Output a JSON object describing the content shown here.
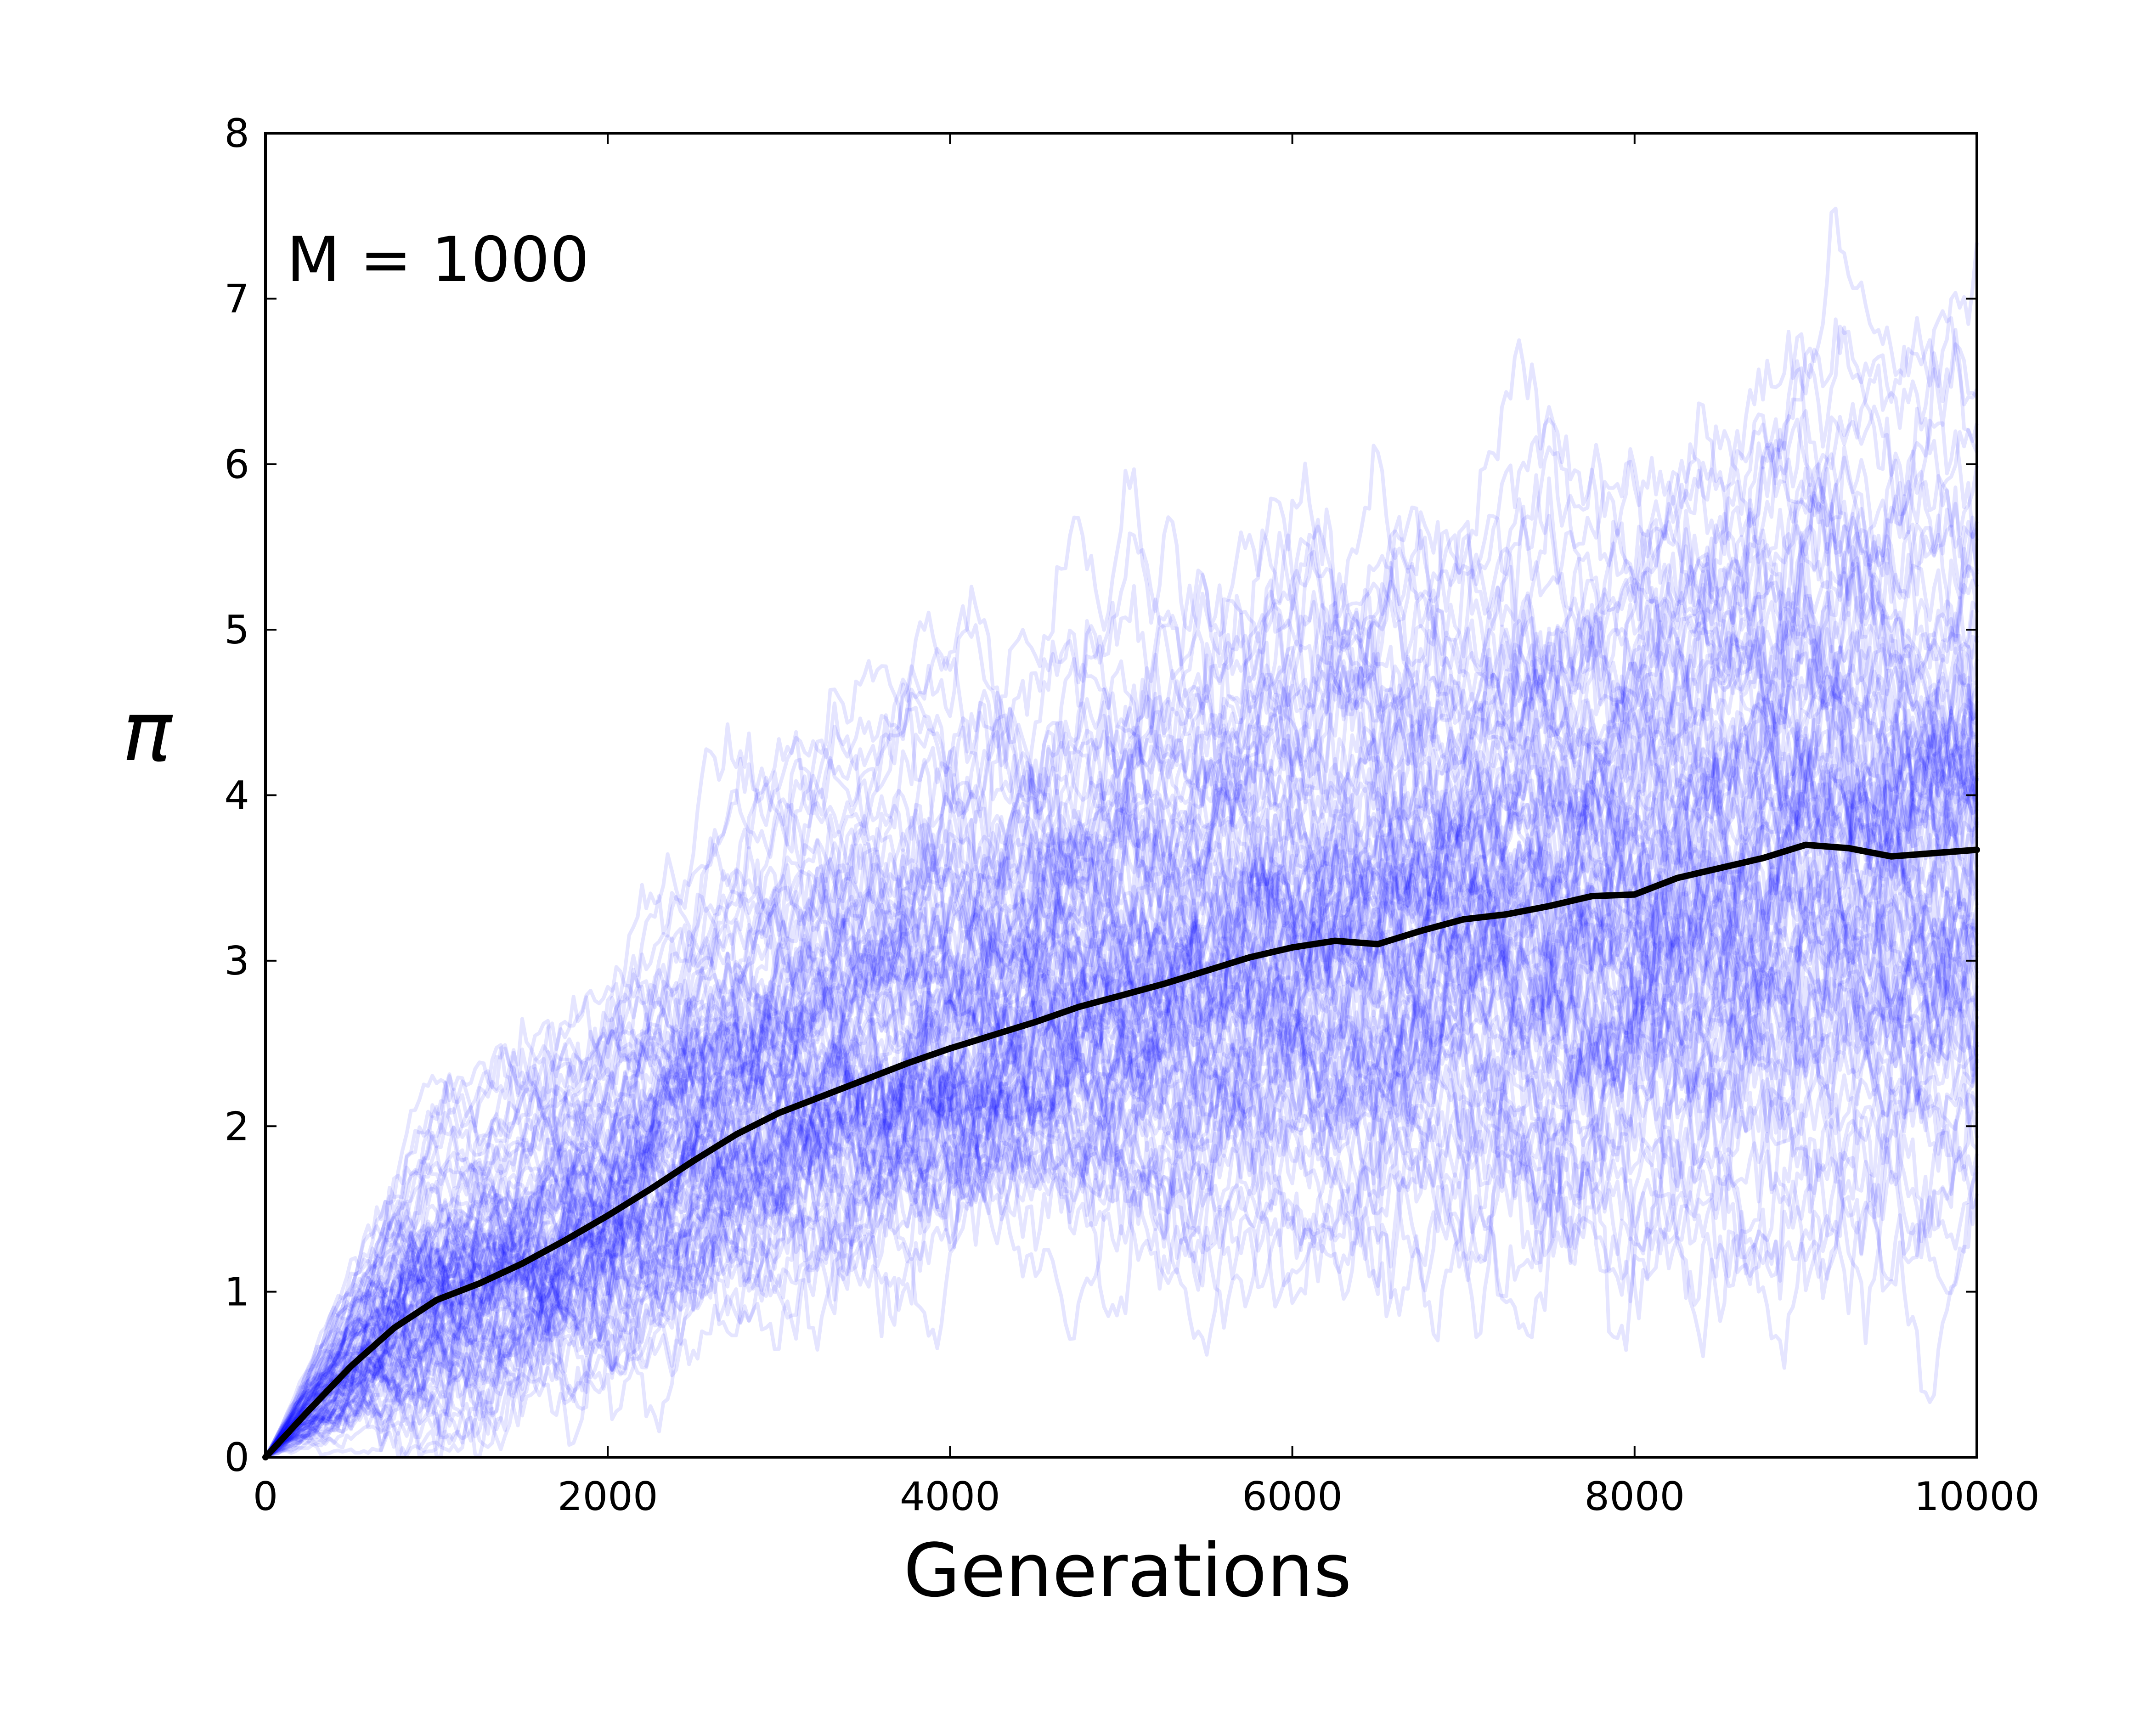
{
  "chart_data": {
    "type": "line",
    "xlabel": "Generations",
    "ylabel": "π",
    "annotation": "M = 1000",
    "xlim": [
      0,
      10000
    ],
    "ylim": [
      0,
      8
    ],
    "xticks": [
      0,
      2000,
      4000,
      6000,
      8000,
      10000
    ],
    "yticks": [
      0,
      1,
      2,
      3,
      4,
      5,
      6,
      7,
      8
    ],
    "grid": false,
    "colors": {
      "replicates": "#0000ff",
      "mean": "#000000",
      "frame": "#000000"
    },
    "replicate_count": 100,
    "replicate_opacity": 0.1,
    "replicate_envelope": {
      "x": [
        0,
        1000,
        2000,
        3000,
        4000,
        5000,
        6000,
        7000,
        8000,
        9000,
        10000
      ],
      "lower": [
        0,
        0.2,
        0.4,
        0.8,
        1.0,
        0.9,
        0.7,
        0.6,
        0.4,
        0.5,
        0.8
      ],
      "upper": [
        0,
        2.4,
        3.3,
        5.0,
        5.6,
        5.8,
        6.4,
        6.5,
        6.7,
        7.6,
        7.5
      ]
    },
    "series": [
      {
        "name": "",
        "role": "mean",
        "x": [
          0,
          250,
          500,
          750,
          1000,
          1250,
          1500,
          1750,
          2000,
          2250,
          2500,
          2750,
          3000,
          3250,
          3500,
          3750,
          4000,
          4250,
          4500,
          4750,
          5000,
          5250,
          5500,
          5750,
          6000,
          6250,
          6500,
          6750,
          7000,
          7250,
          7500,
          7750,
          8000,
          8250,
          8500,
          8750,
          9000,
          9250,
          9500,
          9750,
          10000
        ],
        "y": [
          0,
          0.28,
          0.55,
          0.78,
          0.95,
          1.05,
          1.17,
          1.31,
          1.46,
          1.62,
          1.79,
          1.95,
          2.08,
          2.18,
          2.28,
          2.38,
          2.47,
          2.55,
          2.63,
          2.72,
          2.79,
          2.86,
          2.94,
          3.02,
          3.08,
          3.12,
          3.1,
          3.18,
          3.25,
          3.28,
          3.33,
          3.39,
          3.4,
          3.5,
          3.56,
          3.62,
          3.7,
          3.68,
          3.63,
          3.65,
          3.67
        ]
      }
    ]
  }
}
